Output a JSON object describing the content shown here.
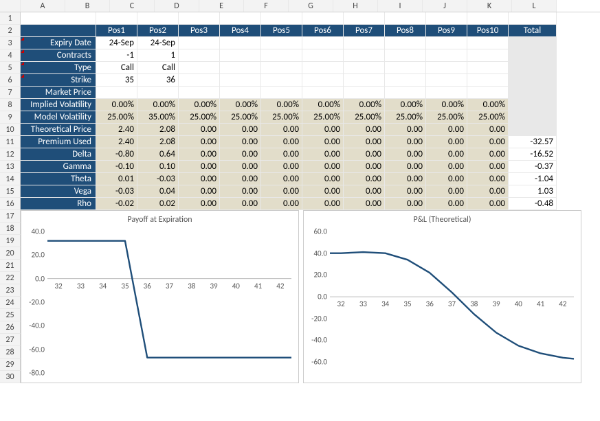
{
  "columns": [
    "A",
    "B",
    "C",
    "D",
    "E",
    "F",
    "G",
    "H",
    "I",
    "J",
    "K",
    "L"
  ],
  "row_count": 30,
  "pos_headers": [
    "Pos1",
    "Pos2",
    "Pos3",
    "Pos4",
    "Pos5",
    "Pos6",
    "Pos7",
    "Pos8",
    "Pos9",
    "Pos10"
  ],
  "total_header": "Total",
  "row_labels": {
    "expiry": "Expiry Date",
    "contracts": "Contracts",
    "type": "Type",
    "strike": "Strike",
    "market_price": "Market Price",
    "implied_vol": "Implied Volatility",
    "model_vol": "Model Volatility",
    "theor_price": "Theoretical Price",
    "premium_used": "Premium Used",
    "delta": "Delta",
    "gamma": "Gamma",
    "theta": "Theta",
    "vega": "Vega",
    "rho": "Rho"
  },
  "data": {
    "expiry": [
      "24-Sep",
      "24-Sep",
      "",
      "",
      "",
      "",
      "",
      "",
      "",
      ""
    ],
    "contracts": [
      "-1",
      "1",
      "",
      "",
      "",
      "",
      "",
      "",
      "",
      ""
    ],
    "type": [
      "Call",
      "Call",
      "",
      "",
      "",
      "",
      "",
      "",
      "",
      ""
    ],
    "strike": [
      "35",
      "36",
      "",
      "",
      "",
      "",
      "",
      "",
      "",
      ""
    ],
    "market_price": [
      "",
      "",
      "",
      "",
      "",
      "",
      "",
      "",
      "",
      ""
    ],
    "implied_vol": [
      "0.00%",
      "0.00%",
      "0.00%",
      "0.00%",
      "0.00%",
      "0.00%",
      "0.00%",
      "0.00%",
      "0.00%",
      "0.00%"
    ],
    "model_vol": [
      "25.00%",
      "35.00%",
      "25.00%",
      "25.00%",
      "25.00%",
      "25.00%",
      "25.00%",
      "25.00%",
      "25.00%",
      "25.00%"
    ],
    "theor_price": [
      "2.40",
      "2.08",
      "0.00",
      "0.00",
      "0.00",
      "0.00",
      "0.00",
      "0.00",
      "0.00",
      "0.00"
    ],
    "premium_used": [
      "2.40",
      "2.08",
      "0.00",
      "0.00",
      "0.00",
      "0.00",
      "0.00",
      "0.00",
      "0.00",
      "0.00"
    ],
    "delta": [
      "-0.80",
      "0.64",
      "0.00",
      "0.00",
      "0.00",
      "0.00",
      "0.00",
      "0.00",
      "0.00",
      "0.00"
    ],
    "gamma": [
      "-0.10",
      "0.10",
      "0.00",
      "0.00",
      "0.00",
      "0.00",
      "0.00",
      "0.00",
      "0.00",
      "0.00"
    ],
    "theta": [
      "0.01",
      "-0.03",
      "0.00",
      "0.00",
      "0.00",
      "0.00",
      "0.00",
      "0.00",
      "0.00",
      "0.00"
    ],
    "vega": [
      "-0.03",
      "0.04",
      "0.00",
      "0.00",
      "0.00",
      "0.00",
      "0.00",
      "0.00",
      "0.00",
      "0.00"
    ],
    "rho": [
      "-0.02",
      "0.02",
      "0.00",
      "0.00",
      "0.00",
      "0.00",
      "0.00",
      "0.00",
      "0.00",
      "0.00"
    ]
  },
  "tan_rows": [
    "implied_vol",
    "model_vol",
    "theor_price",
    "premium_used",
    "delta",
    "gamma",
    "theta",
    "vega",
    "rho"
  ],
  "white_rows": [
    "expiry",
    "contracts",
    "type",
    "strike",
    "market_price"
  ],
  "totals": {
    "premium_used": "-32.57",
    "delta": "-16.52",
    "gamma": "-0.37",
    "theta": "-1.04",
    "vega": "1.03",
    "rho": "-0.48"
  },
  "charts": {
    "payoff": {
      "title": "Payoff at Expiration",
      "y_ticks": [
        -80,
        -60,
        -40,
        -20,
        0,
        20,
        40
      ],
      "x_ticks": [
        32,
        33,
        34,
        35,
        36,
        37,
        38,
        39,
        40,
        41,
        42
      ],
      "ylim": [
        -80,
        40
      ],
      "xlim": [
        31.5,
        42.5
      ],
      "x_axis_at": 0,
      "line_color": "#1f4e79",
      "line_width": 2.4,
      "points": [
        [
          31.5,
          32
        ],
        [
          35,
          32
        ],
        [
          36,
          -67
        ],
        [
          42.5,
          -67
        ]
      ]
    },
    "pnl": {
      "title": "P&L (Theoretical)",
      "y_ticks": [
        -60,
        -40,
        -20,
        0,
        20,
        40,
        60
      ],
      "x_ticks": [
        32,
        33,
        34,
        35,
        36,
        37,
        38,
        39,
        40,
        41,
        42
      ],
      "ylim": [
        -70,
        60
      ],
      "xlim": [
        31.5,
        42.5
      ],
      "x_axis_at": 0,
      "line_color": "#1f4e79",
      "line_width": 2.4,
      "points": [
        [
          31.5,
          40
        ],
        [
          32,
          40
        ],
        [
          33,
          41
        ],
        [
          34,
          40
        ],
        [
          35,
          34
        ],
        [
          36,
          22
        ],
        [
          37,
          4
        ],
        [
          38,
          -16
        ],
        [
          39,
          -33
        ],
        [
          40,
          -45
        ],
        [
          41,
          -52
        ],
        [
          42,
          -56
        ],
        [
          42.5,
          -57
        ]
      ]
    }
  },
  "row_order": [
    "expiry",
    "contracts",
    "type",
    "strike",
    "market_price",
    "implied_vol",
    "model_vol",
    "theor_price",
    "premium_used",
    "delta",
    "gamma",
    "theta",
    "vega",
    "rho"
  ]
}
